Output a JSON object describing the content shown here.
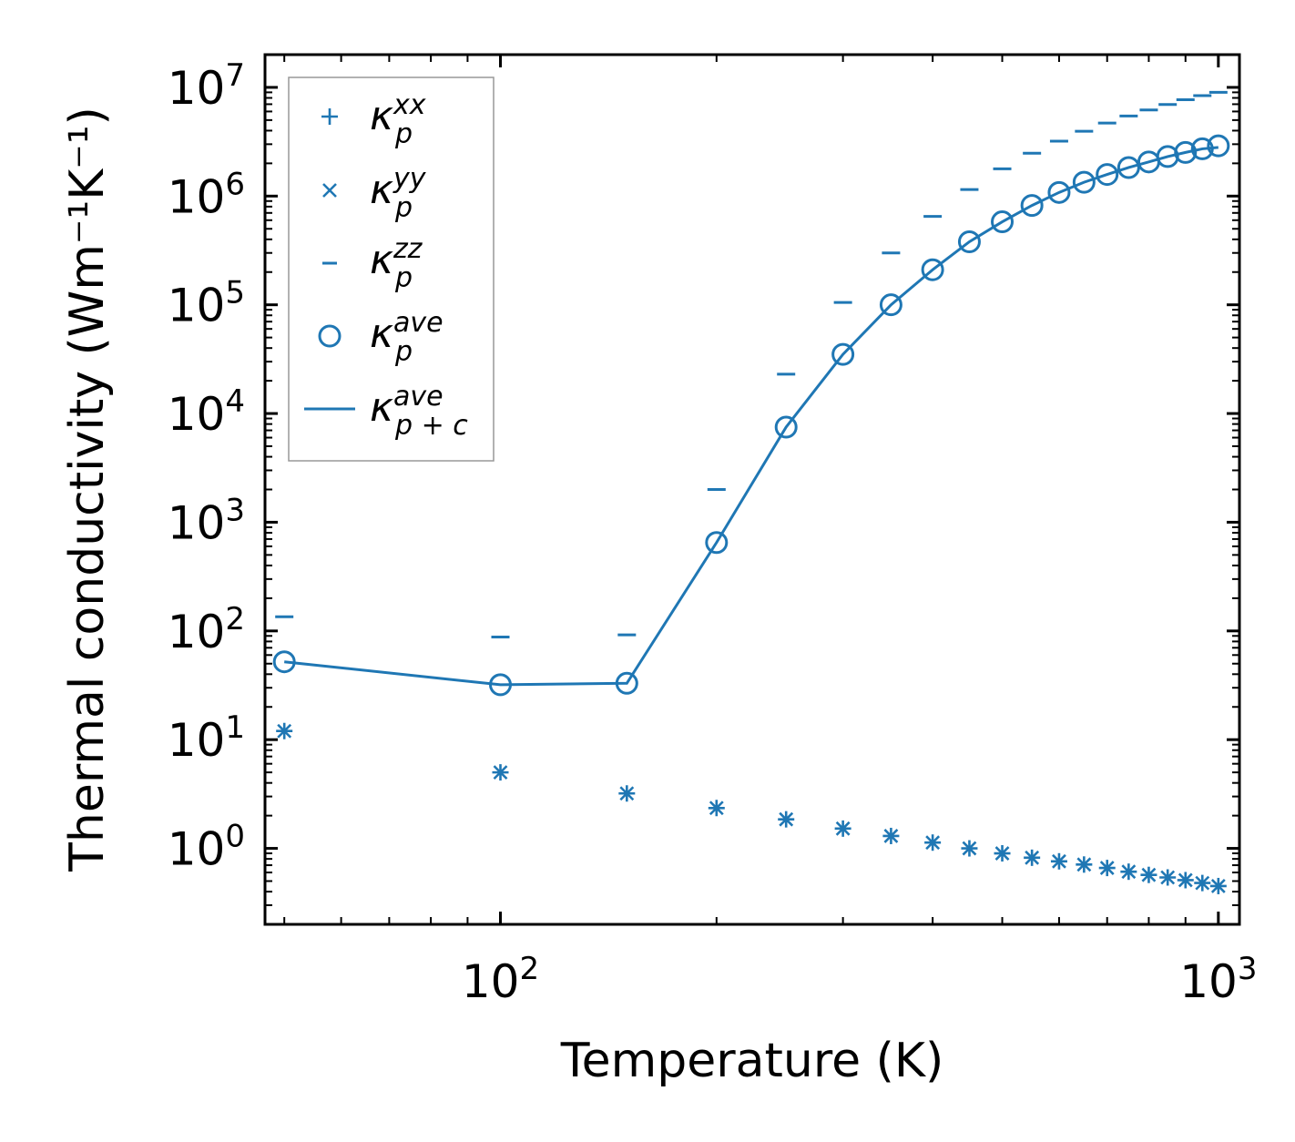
{
  "chart_data": {
    "type": "scatter",
    "xscale": "log",
    "yscale": "log",
    "xlim": [
      47,
      1070
    ],
    "ylim": [
      0.2,
      20000000
    ],
    "xlabel": "Temperature (K)",
    "ylabel": "Thermal conductivity (Wm⁻¹K⁻¹)",
    "x_ticks": [
      {
        "base": "10",
        "exp": "2",
        "value": 100
      },
      {
        "base": "10",
        "exp": "3",
        "value": 1000
      }
    ],
    "y_ticks": [
      {
        "base": "10",
        "exp": "0",
        "value": 1
      },
      {
        "base": "10",
        "exp": "1",
        "value": 10
      },
      {
        "base": "10",
        "exp": "2",
        "value": 100
      },
      {
        "base": "10",
        "exp": "3",
        "value": 1000
      },
      {
        "base": "10",
        "exp": "4",
        "value": 10000
      },
      {
        "base": "10",
        "exp": "5",
        "value": 100000
      },
      {
        "base": "10",
        "exp": "6",
        "value": 1000000
      },
      {
        "base": "10",
        "exp": "7",
        "value": 10000000
      }
    ],
    "color": "#1f77b4",
    "x": [
      50,
      100,
      150,
      200,
      250,
      300,
      350,
      400,
      450,
      500,
      550,
      600,
      650,
      700,
      750,
      800,
      850,
      900,
      950,
      1000
    ],
    "series": [
      {
        "name": "κ_p^xx",
        "symbol": "κ",
        "sub": "p",
        "sup": "xx",
        "marker": "plus",
        "values": [
          12,
          5.0,
          3.2,
          2.35,
          1.85,
          1.52,
          1.3,
          1.13,
          1.0,
          0.9,
          0.82,
          0.76,
          0.71,
          0.66,
          0.61,
          0.57,
          0.54,
          0.51,
          0.48,
          0.45
        ]
      },
      {
        "name": "κ_p^yy",
        "symbol": "κ",
        "sub": "p",
        "sup": "yy",
        "marker": "x",
        "values": [
          12,
          5.0,
          3.2,
          2.35,
          1.85,
          1.52,
          1.3,
          1.13,
          1.0,
          0.9,
          0.82,
          0.76,
          0.71,
          0.66,
          0.61,
          0.57,
          0.54,
          0.51,
          0.48,
          0.45
        ]
      },
      {
        "name": "κ_p^zz",
        "symbol": "κ",
        "sub": "p",
        "sup": "zz",
        "marker": "hline",
        "values": [
          135,
          88,
          92,
          2000,
          23000,
          105000,
          300000,
          650000,
          1150000,
          1780000,
          2480000,
          3200000,
          3950000,
          4700000,
          5450000,
          6200000,
          6950000,
          7700000,
          8400000,
          9000000
        ]
      },
      {
        "name": "κ_p^ave",
        "symbol": "κ",
        "sub": "p",
        "sup": "ave",
        "marker": "circle",
        "values": [
          52,
          32,
          33,
          650,
          7500,
          35000,
          100000,
          210000,
          380000,
          580000,
          820000,
          1080000,
          1340000,
          1580000,
          1830000,
          2060000,
          2310000,
          2520000,
          2720000,
          2900000
        ]
      },
      {
        "name": "κ_p+c^ave",
        "symbol": "κ",
        "sub": "p + c",
        "sup": "ave",
        "marker": "line",
        "values": [
          52,
          32,
          33,
          650,
          7500,
          35000,
          100000,
          210000,
          380000,
          580000,
          820000,
          1080000,
          1340000,
          1580000,
          1830000,
          2060000,
          2310000,
          2520000,
          2720000,
          2800000
        ]
      }
    ],
    "legend_position": "top-left"
  }
}
